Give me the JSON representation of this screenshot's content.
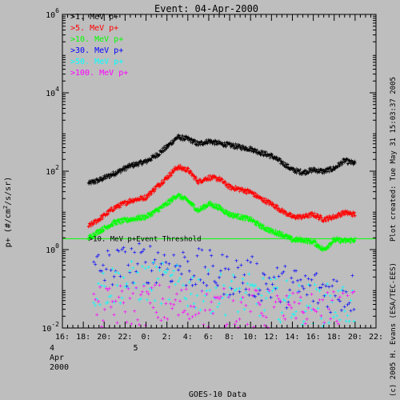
{
  "chart_data": {
    "type": "scatter",
    "title": "Event: 04-Apr-2000",
    "ylabel": "p+ (#/cm²/s/sr)",
    "xlabel": "GOES-10 Data",
    "y_scale": "log",
    "ylim": [
      0.01,
      1000000
    ],
    "xlim": [
      "2000-04-04 16:00",
      "2000-04-05 22:00"
    ],
    "y_ticks": [
      {
        "value": 0.01,
        "base": "10",
        "exp": "-2"
      },
      {
        "value": 1,
        "base": "10",
        "exp": "0"
      },
      {
        "value": 100,
        "base": "10",
        "exp": "2"
      },
      {
        "value": 10000,
        "base": "10",
        "exp": "4"
      },
      {
        "value": 1000000,
        "base": "10",
        "exp": "6"
      }
    ],
    "x_ticks": [
      {
        "time": "2000-04-04 16:00",
        "label": "16:"
      },
      {
        "time": "2000-04-04 18:00",
        "label": "18:"
      },
      {
        "time": "2000-04-04 20:00",
        "label": "20:"
      },
      {
        "time": "2000-04-04 22:00",
        "label": "22:"
      },
      {
        "time": "2000-04-05 00:00",
        "label": "0:"
      },
      {
        "time": "2000-04-05 02:00",
        "label": "2:"
      },
      {
        "time": "2000-04-05 04:00",
        "label": "4:"
      },
      {
        "time": "2000-04-05 06:00",
        "label": "6:"
      },
      {
        "time": "2000-04-05 08:00",
        "label": "8:"
      },
      {
        "time": "2000-04-05 10:00",
        "label": "10:"
      },
      {
        "time": "2000-04-05 12:00",
        "label": "12:"
      },
      {
        "time": "2000-04-05 14:00",
        "label": "14:"
      },
      {
        "time": "2000-04-05 16:00",
        "label": "16:"
      },
      {
        "time": "2000-04-05 18:00",
        "label": "18:"
      },
      {
        "time": "2000-04-05 20:00",
        "label": "20:"
      },
      {
        "time": "2000-04-05 22:00",
        "label": "22:"
      }
    ],
    "date_labels": [
      {
        "time": "2000-04-04 16:00",
        "lines": [
          "4",
          "Apr",
          "2000"
        ]
      },
      {
        "time": "2000-04-05 00:00",
        "lines": [
          "5"
        ]
      }
    ],
    "threshold": {
      "value": 1.9,
      "label": ">10. MeV p+Event Threshold",
      "color": "#00ff00"
    },
    "series": [
      {
        "name": ">1. MeV p+",
        "color": "#000000",
        "x": [
          "2000-04-04 18:30",
          "2000-04-04 19:30",
          "2000-04-04 21:00",
          "2000-04-04 22:30",
          "2000-04-05 00:00",
          "2000-04-05 01:00",
          "2000-04-05 02:00",
          "2000-04-05 03:00",
          "2000-04-05 04:00",
          "2000-04-05 05:00",
          "2000-04-05 06:00",
          "2000-04-05 07:00",
          "2000-04-05 08:00",
          "2000-04-05 09:00",
          "2000-04-05 10:00",
          "2000-04-05 11:00",
          "2000-04-05 12:00",
          "2000-04-05 13:00",
          "2000-04-05 14:00",
          "2000-04-05 15:00",
          "2000-04-05 16:00",
          "2000-04-05 17:00",
          "2000-04-05 18:00",
          "2000-04-05 19:00",
          "2000-04-05 20:00"
        ],
        "y": [
          50,
          60,
          90,
          140,
          180,
          260,
          420,
          750,
          680,
          500,
          600,
          520,
          470,
          420,
          380,
          300,
          250,
          170,
          110,
          95,
          110,
          100,
          120,
          190,
          160
        ]
      },
      {
        "name": ">5. MeV p+",
        "color": "#ff0000",
        "x": [
          "2000-04-04 18:30",
          "2000-04-04 19:30",
          "2000-04-04 21:00",
          "2000-04-04 22:30",
          "2000-04-05 00:00",
          "2000-04-05 01:00",
          "2000-04-05 02:00",
          "2000-04-05 03:00",
          "2000-04-05 04:00",
          "2000-04-05 05:00",
          "2000-04-05 06:00",
          "2000-04-05 07:00",
          "2000-04-05 08:00",
          "2000-04-05 09:00",
          "2000-04-05 10:00",
          "2000-04-05 11:00",
          "2000-04-05 12:00",
          "2000-04-05 13:00",
          "2000-04-05 14:00",
          "2000-04-05 15:00",
          "2000-04-05 16:00",
          "2000-04-05 17:00",
          "2000-04-05 18:00",
          "2000-04-05 19:00",
          "2000-04-05 20:00"
        ],
        "y": [
          4,
          6,
          12,
          18,
          22,
          40,
          70,
          130,
          110,
          55,
          70,
          65,
          40,
          35,
          30,
          20,
          15,
          10,
          7,
          7,
          8,
          6,
          7,
          9,
          8
        ]
      },
      {
        "name": ">10. MeV p+",
        "color": "#00ff00",
        "x": [
          "2000-04-04 18:30",
          "2000-04-04 19:30",
          "2000-04-04 21:00",
          "2000-04-04 22:30",
          "2000-04-05 00:00",
          "2000-04-05 01:00",
          "2000-04-05 02:00",
          "2000-04-05 03:00",
          "2000-04-05 04:00",
          "2000-04-05 05:00",
          "2000-04-05 06:00",
          "2000-04-05 07:00",
          "2000-04-05 08:00",
          "2000-04-05 09:00",
          "2000-04-05 10:00",
          "2000-04-05 11:00",
          "2000-04-05 12:00",
          "2000-04-05 13:00",
          "2000-04-05 14:00",
          "2000-04-05 15:00",
          "2000-04-05 16:00",
          "2000-04-05 17:00",
          "2000-04-05 18:00",
          "2000-04-05 19:00",
          "2000-04-05 20:00"
        ],
        "y": [
          2,
          3,
          5,
          6,
          7,
          10,
          15,
          25,
          18,
          10,
          15,
          12,
          8,
          7,
          6,
          4,
          3,
          2.5,
          1.8,
          1.8,
          1.6,
          1.0,
          1.8,
          1.7,
          1.8
        ]
      },
      {
        "name": ">30. MeV p+",
        "color": "#0000ff",
        "x": [
          "2000-04-04 19:00",
          "2000-04-04 22:00",
          "2000-04-05 01:00",
          "2000-04-05 04:00",
          "2000-04-05 07:00",
          "2000-04-05 10:00",
          "2000-04-05 13:00",
          "2000-04-05 16:00",
          "2000-04-05 19:00",
          "2000-04-05 20:00"
        ],
        "y": [
          0.3,
          0.4,
          0.5,
          0.35,
          0.25,
          0.2,
          0.12,
          0.1,
          0.08,
          0.08
        ]
      },
      {
        "name": ">50. MeV p+",
        "color": "#00ffff",
        "x": [
          "2000-04-04 19:00",
          "2000-04-04 22:00",
          "2000-04-05 01:00",
          "2000-04-05 04:00",
          "2000-04-05 07:00",
          "2000-04-05 10:00",
          "2000-04-05 13:00",
          "2000-04-05 16:00",
          "2000-04-05 19:00",
          "2000-04-05 20:00"
        ],
        "y": [
          0.1,
          0.15,
          0.15,
          0.1,
          0.08,
          0.07,
          0.05,
          0.04,
          0.04,
          0.04
        ]
      },
      {
        "name": ">100. MeV p+",
        "color": "#ff00ff",
        "x": [
          "2000-04-04 19:00",
          "2000-04-04 22:00",
          "2000-04-05 01:00",
          "2000-04-05 04:00",
          "2000-04-05 07:00",
          "2000-04-05 10:00",
          "2000-04-05 13:00",
          "2000-04-05 16:00",
          "2000-04-05 19:00",
          "2000-04-05 20:00"
        ],
        "y": [
          0.03,
          0.04,
          0.04,
          0.035,
          0.03,
          0.03,
          0.025,
          0.025,
          0.025,
          0.025
        ]
      }
    ]
  },
  "side_texts": {
    "created": "Plot created: Tue May 31 15:03:37 2005",
    "copyright": "(c) 2005 H. Evans (ESA/TEC-EES)"
  },
  "colors": {
    "background": "#bebebe",
    "axis": "#000000"
  }
}
